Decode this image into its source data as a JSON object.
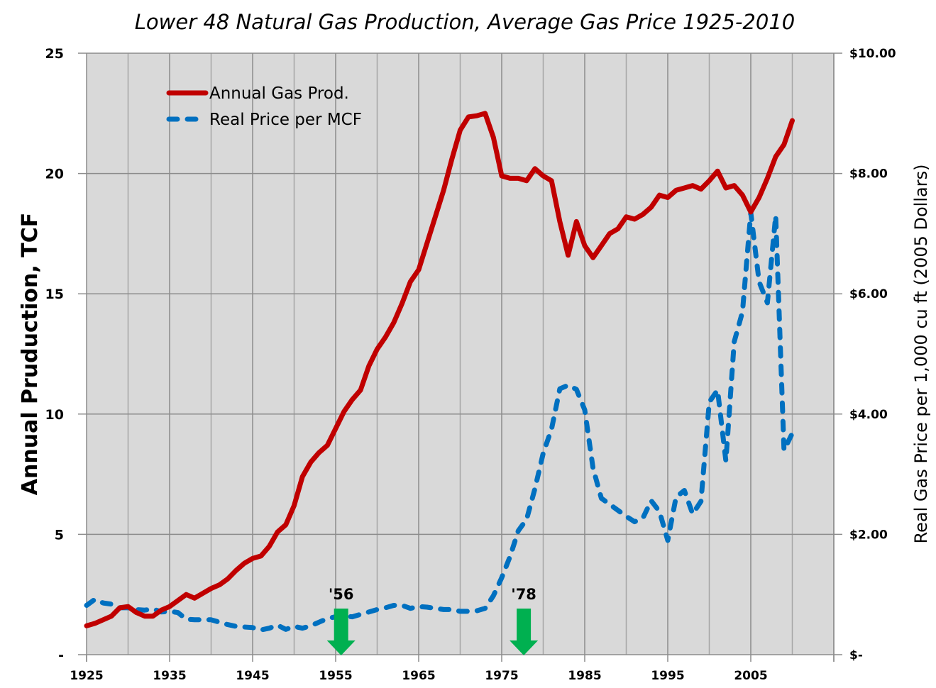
{
  "chart_data": {
    "type": "line",
    "title": "Lower 48 Natural Gas Production, Average Gas Price 1925-2010",
    "xlabel": "",
    "ylabel": "Annual Pruduction, TCF",
    "y2label": "Real Gas Price per 1,000 cu ft (2005 Dollars)",
    "xlim": [
      1925,
      2015
    ],
    "ylim": [
      0,
      25
    ],
    "y2lim": [
      0,
      10
    ],
    "grid": true,
    "background_color": "#d9d9d9",
    "x_ticks": [
      "1925",
      "1935",
      "1945",
      "1955",
      "1965",
      "1975",
      "1985",
      "1995",
      "2005"
    ],
    "y_ticks": [
      {
        "value": 0,
        "label": "-"
      },
      {
        "value": 5,
        "label": "5"
      },
      {
        "value": 10,
        "label": "10"
      },
      {
        "value": 15,
        "label": "15"
      },
      {
        "value": 20,
        "label": "20"
      },
      {
        "value": 25,
        "label": "25"
      }
    ],
    "y2_ticks": [
      {
        "value": 0,
        "label": "$-"
      },
      {
        "value": 2,
        "label": "$2.00"
      },
      {
        "value": 4,
        "label": "$4.00"
      },
      {
        "value": 6,
        "label": "$6.00"
      },
      {
        "value": 8,
        "label": "$8.00"
      },
      {
        "value": 10,
        "label": "$10.00"
      }
    ],
    "legend": {
      "position": "top-left",
      "entries": [
        {
          "label": "Annual Gas Prod.",
          "series": 0
        },
        {
          "label": "Real Price per MCF",
          "series": 1
        }
      ]
    },
    "x": [
      1925,
      1926,
      1927,
      1928,
      1929,
      1930,
      1931,
      1932,
      1933,
      1934,
      1935,
      1936,
      1937,
      1938,
      1939,
      1940,
      1941,
      1942,
      1943,
      1944,
      1945,
      1946,
      1947,
      1948,
      1949,
      1950,
      1951,
      1952,
      1953,
      1954,
      1955,
      1956,
      1957,
      1958,
      1959,
      1960,
      1961,
      1962,
      1963,
      1964,
      1965,
      1966,
      1967,
      1968,
      1969,
      1970,
      1971,
      1972,
      1973,
      1974,
      1975,
      1976,
      1977,
      1978,
      1979,
      1980,
      1981,
      1982,
      1983,
      1984,
      1985,
      1986,
      1987,
      1988,
      1989,
      1990,
      1991,
      1992,
      1993,
      1994,
      1995,
      1996,
      1997,
      1998,
      1999,
      2000,
      2001,
      2002,
      2003,
      2004,
      2005,
      2006,
      2007,
      2008,
      2009,
      2010
    ],
    "series": [
      {
        "name": "Annual Gas Prod.",
        "axis": "left",
        "color": "#c00000",
        "style": "solid",
        "values": [
          1.2,
          1.3,
          1.45,
          1.6,
          1.95,
          2.0,
          1.75,
          1.6,
          1.6,
          1.85,
          2.0,
          2.25,
          2.5,
          2.35,
          2.55,
          2.75,
          2.9,
          3.15,
          3.5,
          3.8,
          4.0,
          4.1,
          4.5,
          5.1,
          5.4,
          6.2,
          7.4,
          8.0,
          8.4,
          8.7,
          9.4,
          10.1,
          10.6,
          11.0,
          12.0,
          12.7,
          13.2,
          13.8,
          14.6,
          15.5,
          16.0,
          17.1,
          18.2,
          19.3,
          20.6,
          21.8,
          22.35,
          22.4,
          22.5,
          21.5,
          19.9,
          19.8,
          19.8,
          19.7,
          20.2,
          19.9,
          19.7,
          18.0,
          16.6,
          18.0,
          17.0,
          16.5,
          17.0,
          17.5,
          17.7,
          18.2,
          18.1,
          18.3,
          18.6,
          19.1,
          19.0,
          19.3,
          19.4,
          19.5,
          19.35,
          19.7,
          20.1,
          19.4,
          19.5,
          19.1,
          18.4,
          19.0,
          19.8,
          20.7,
          21.2,
          22.2
        ]
      },
      {
        "name": "Real Price per MCF",
        "axis": "right",
        "color": "#0070c0",
        "style": "dashed",
        "values": [
          0.82,
          0.92,
          0.86,
          0.84,
          0.78,
          0.78,
          0.75,
          0.74,
          0.76,
          0.71,
          0.72,
          0.7,
          0.59,
          0.58,
          0.58,
          0.58,
          0.54,
          0.5,
          0.47,
          0.46,
          0.45,
          0.41,
          0.44,
          0.49,
          0.42,
          0.47,
          0.44,
          0.48,
          0.54,
          0.6,
          0.63,
          0.64,
          0.63,
          0.67,
          0.71,
          0.75,
          0.78,
          0.82,
          0.82,
          0.77,
          0.8,
          0.79,
          0.77,
          0.75,
          0.75,
          0.72,
          0.72,
          0.73,
          0.77,
          0.98,
          1.28,
          1.63,
          2.06,
          2.25,
          2.76,
          3.35,
          3.75,
          4.42,
          4.48,
          4.41,
          4.07,
          3.1,
          2.6,
          2.5,
          2.4,
          2.3,
          2.21,
          2.27,
          2.56,
          2.38,
          1.9,
          2.62,
          2.73,
          2.34,
          2.55,
          4.2,
          4.4,
          3.22,
          5.2,
          5.7,
          7.35,
          6.2,
          5.85,
          7.3,
          3.4,
          3.68
        ]
      }
    ],
    "annotations": [
      {
        "label": "'56",
        "year": 1956,
        "marker": "down-arrow",
        "color": "#00b050"
      },
      {
        "label": "'78",
        "year": 1978,
        "marker": "down-arrow",
        "color": "#00b050"
      }
    ]
  }
}
